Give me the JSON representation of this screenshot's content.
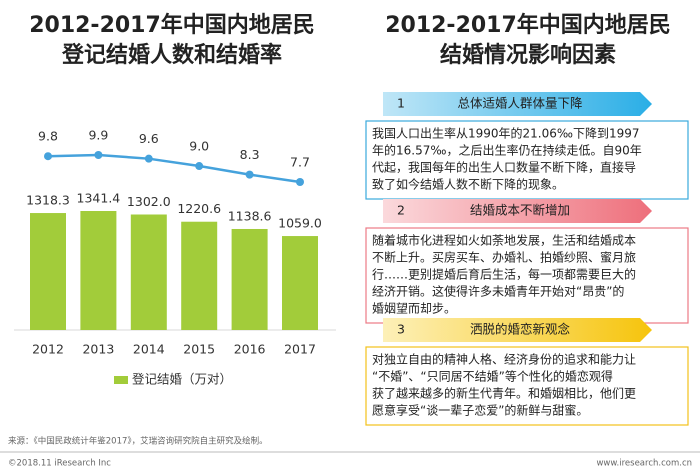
{
  "chart_data": {
    "type": "bar",
    "title": [
      "2012-2017年中国内地居民",
      "登记结婚人数和结婚率"
    ],
    "categories": [
      "2012",
      "2013",
      "2014",
      "2015",
      "2016",
      "2017"
    ],
    "series": [
      {
        "name": "登记结婚（万对）",
        "type": "bar",
        "color": "#a2cc3a",
        "values": [
          1318.3,
          1341.4,
          1302.0,
          1220.6,
          1138.6,
          1059.0
        ],
        "value_labels": [
          "1318.3",
          "1341.4",
          "1302.0",
          "1220.6",
          "1138.6",
          "1059.0"
        ]
      },
      {
        "type": "line",
        "color": "#45a2dc",
        "values": [
          9.8,
          9.9,
          9.6,
          9.0,
          8.3,
          7.7
        ],
        "value_labels": [
          "9.8",
          "9.9",
          "9.6",
          "9.0",
          "8.3",
          "7.7"
        ]
      }
    ]
  },
  "panel": {
    "title": [
      "2012-2017年中国内地居民",
      "结婚情况影响因素"
    ],
    "items": [
      {
        "number": "1",
        "heading": "总体适婚人群体量下降",
        "lines": [
          "我国人口出生率从1990年的21.06‰下降到1997",
          "年的16.57‰，之后出生率仍在持续走低。自90年",
          "代起，我国每年的出生人口数量不断下降，直接导",
          "致了如今结婚人数不断下降的现象。"
        ]
      },
      {
        "number": "2",
        "heading": "结婚成本不断增加",
        "lines": [
          "随着城市化进程如火如荼地发展，生活和结婚成本",
          "不断上升。买房买车、办婚礼、拍婚纱照、蜜月旅",
          "行……更别提婚后育后生活，每一项都需要巨大的",
          "经济开销。这使得许多未婚青年开始对“昂贵”的",
          "婚姻望而却步。"
        ]
      },
      {
        "number": "3",
        "heading": "洒脱的婚恋新观念",
        "lines": [
          "对独立自由的精神人格、经济身份的追求和能力让",
          "“不婚”、“只同居不结婚”等个性化的婚恋观得",
          "获了越来越多的新生代青年。和婚姻相比，他们更",
          "愿意享受“谈一辈子恋爱”的新鲜与甜蜜。"
        ]
      }
    ]
  },
  "footer": {
    "source": "来源：《中国民政统计年鉴2017》，艾瑞咨询研究院自主研究及绘制。",
    "copyright": "©2018.11 iResearch Inc",
    "website": "www.iresearch.com.cn"
  }
}
